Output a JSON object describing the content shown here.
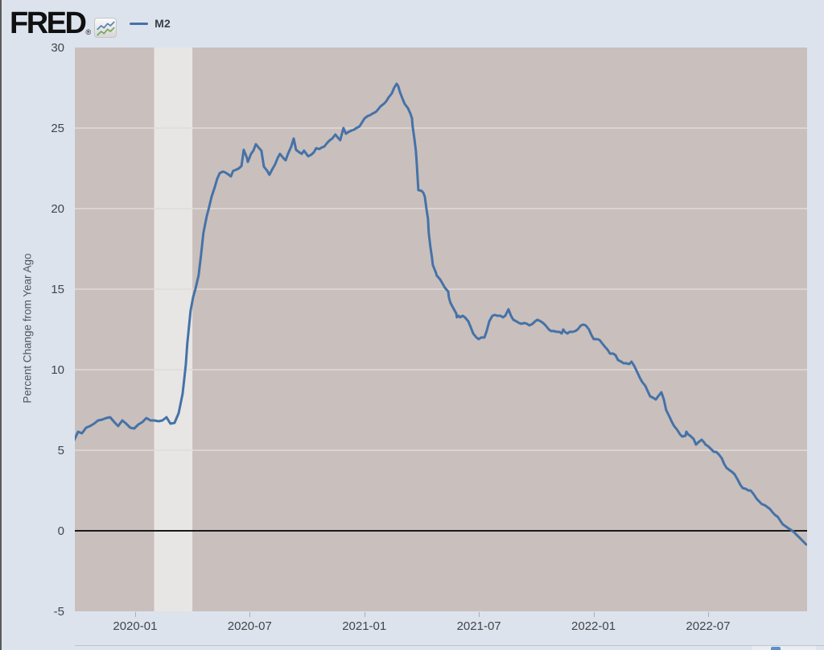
{
  "header": {
    "brand": "FRED",
    "registered": "®",
    "legend": {
      "series_label": "M2"
    }
  },
  "colors": {
    "background": "#dde3ed",
    "plot_bg": "#c9bfbc",
    "recession_band": "#e7e6e4",
    "gridline": "#e1dcd9",
    "series_line": "#4572a7",
    "zero_line": "#1a1a1a",
    "axis_text": "#424549",
    "icon_blue": "#5b84b1",
    "icon_green": "#7aa661"
  },
  "chart_data": {
    "type": "line",
    "title": "",
    "ylabel": "Percent Change from Year Ago",
    "xlabel": "",
    "grid": true,
    "legend_position": "top-left",
    "xlim": [
      2019.737,
      2022.932
    ],
    "ylim": [
      -5,
      30
    ],
    "y_ticks": [
      {
        "v": 30,
        "label": "30",
        "grid": false
      },
      {
        "v": 25,
        "label": "25",
        "grid": true
      },
      {
        "v": 20,
        "label": "20",
        "grid": true
      },
      {
        "v": 15,
        "label": "15",
        "grid": true
      },
      {
        "v": 10,
        "label": "10",
        "grid": true
      },
      {
        "v": 5,
        "label": "5",
        "grid": true
      },
      {
        "v": 0,
        "label": "0",
        "grid": false
      },
      {
        "v": -5,
        "label": "-5",
        "grid": false
      }
    ],
    "x_ticks": [
      {
        "year": 2020.0,
        "label": "2020-01"
      },
      {
        "year": 2020.5,
        "label": "2020-07"
      },
      {
        "year": 2021.0,
        "label": "2021-01"
      },
      {
        "year": 2021.5,
        "label": "2021-07"
      },
      {
        "year": 2022.0,
        "label": "2022-01"
      },
      {
        "year": 2022.5,
        "label": "2022-07"
      }
    ],
    "zero_line": 0,
    "recession_band": {
      "start": 2020.083,
      "end": 2020.25
    },
    "series": [
      {
        "name": "M2",
        "color": "#4572a7",
        "points": [
          [
            2019.733,
            5.6
          ],
          [
            2019.751,
            6.15
          ],
          [
            2019.768,
            6.05
          ],
          [
            2019.786,
            6.4
          ],
          [
            2019.803,
            6.5
          ],
          [
            2019.821,
            6.65
          ],
          [
            2019.838,
            6.85
          ],
          [
            2019.856,
            6.9
          ],
          [
            2019.874,
            7.0
          ],
          [
            2019.891,
            7.05
          ],
          [
            2019.909,
            6.75
          ],
          [
            2019.926,
            6.5
          ],
          [
            2019.944,
            6.85
          ],
          [
            2019.961,
            6.65
          ],
          [
            2019.979,
            6.4
          ],
          [
            2019.996,
            6.35
          ],
          [
            2020.014,
            6.6
          ],
          [
            2020.032,
            6.75
          ],
          [
            2020.049,
            7.0
          ],
          [
            2020.067,
            6.85
          ],
          [
            2020.084,
            6.85
          ],
          [
            2020.102,
            6.8
          ],
          [
            2020.119,
            6.85
          ],
          [
            2020.137,
            7.05
          ],
          [
            2020.154,
            6.65
          ],
          [
            2020.172,
            6.7
          ],
          [
            2020.19,
            7.3
          ],
          [
            2020.207,
            8.5
          ],
          [
            2020.221,
            10.3
          ],
          [
            2020.228,
            11.65
          ],
          [
            2020.235,
            12.65
          ],
          [
            2020.242,
            13.65
          ],
          [
            2020.253,
            14.5
          ],
          [
            2020.263,
            15.0
          ],
          [
            2020.277,
            15.85
          ],
          [
            2020.288,
            17.15
          ],
          [
            2020.298,
            18.5
          ],
          [
            2020.312,
            19.5
          ],
          [
            2020.323,
            20.1
          ],
          [
            2020.334,
            20.75
          ],
          [
            2020.348,
            21.35
          ],
          [
            2020.358,
            21.85
          ],
          [
            2020.369,
            22.2
          ],
          [
            2020.383,
            22.3
          ],
          [
            2020.393,
            22.25
          ],
          [
            2020.404,
            22.15
          ],
          [
            2020.418,
            22.0
          ],
          [
            2020.428,
            22.35
          ],
          [
            2020.439,
            22.4
          ],
          [
            2020.453,
            22.5
          ],
          [
            2020.464,
            22.65
          ],
          [
            2020.474,
            23.65
          ],
          [
            2020.488,
            23.15
          ],
          [
            2020.492,
            22.9
          ],
          [
            2020.506,
            23.4
          ],
          [
            2020.516,
            23.6
          ],
          [
            2020.527,
            24.0
          ],
          [
            2020.541,
            23.75
          ],
          [
            2020.551,
            23.6
          ],
          [
            2020.562,
            22.6
          ],
          [
            2020.576,
            22.35
          ],
          [
            2020.586,
            22.1
          ],
          [
            2020.597,
            22.4
          ],
          [
            2020.611,
            22.75
          ],
          [
            2020.622,
            23.15
          ],
          [
            2020.632,
            23.4
          ],
          [
            2020.646,
            23.15
          ],
          [
            2020.657,
            23.0
          ],
          [
            2020.667,
            23.4
          ],
          [
            2020.681,
            23.85
          ],
          [
            2020.692,
            24.35
          ],
          [
            2020.702,
            23.65
          ],
          [
            2020.716,
            23.5
          ],
          [
            2020.727,
            23.4
          ],
          [
            2020.737,
            23.6
          ],
          [
            2020.755,
            23.25
          ],
          [
            2020.769,
            23.35
          ],
          [
            2020.78,
            23.5
          ],
          [
            2020.79,
            23.75
          ],
          [
            2020.804,
            23.7
          ],
          [
            2020.815,
            23.8
          ],
          [
            2020.825,
            23.85
          ],
          [
            2020.839,
            24.1
          ],
          [
            2020.85,
            24.25
          ],
          [
            2020.86,
            24.35
          ],
          [
            2020.874,
            24.6
          ],
          [
            2020.885,
            24.4
          ],
          [
            2020.895,
            24.25
          ],
          [
            2020.909,
            25.0
          ],
          [
            2020.92,
            24.65
          ],
          [
            2020.93,
            24.75
          ],
          [
            2020.944,
            24.85
          ],
          [
            2020.955,
            24.9
          ],
          [
            2020.965,
            25.0
          ],
          [
            2020.979,
            25.1
          ],
          [
            2020.99,
            25.35
          ],
          [
            2021.001,
            25.6
          ],
          [
            2021.015,
            25.75
          ],
          [
            2021.025,
            25.8
          ],
          [
            2021.036,
            25.9
          ],
          [
            2021.05,
            26.0
          ],
          [
            2021.06,
            26.15
          ],
          [
            2021.071,
            26.35
          ],
          [
            2021.085,
            26.5
          ],
          [
            2021.095,
            26.65
          ],
          [
            2021.106,
            26.9
          ],
          [
            2021.12,
            27.15
          ],
          [
            2021.13,
            27.5
          ],
          [
            2021.141,
            27.75
          ],
          [
            2021.148,
            27.6
          ],
          [
            2021.155,
            27.25
          ],
          [
            2021.166,
            26.85
          ],
          [
            2021.176,
            26.5
          ],
          [
            2021.19,
            26.25
          ],
          [
            2021.201,
            25.9
          ],
          [
            2021.208,
            25.6
          ],
          [
            2021.211,
            25.1
          ],
          [
            2021.218,
            24.4
          ],
          [
            2021.225,
            23.6
          ],
          [
            2021.229,
            22.75
          ],
          [
            2021.236,
            21.15
          ],
          [
            2021.25,
            21.1
          ],
          [
            2021.257,
            21.0
          ],
          [
            2021.264,
            20.75
          ],
          [
            2021.271,
            20.0
          ],
          [
            2021.278,
            19.35
          ],
          [
            2021.281,
            18.5
          ],
          [
            2021.288,
            17.65
          ],
          [
            2021.295,
            17.0
          ],
          [
            2021.299,
            16.5
          ],
          [
            2021.306,
            16.25
          ],
          [
            2021.313,
            16.0
          ],
          [
            2021.316,
            15.85
          ],
          [
            2021.331,
            15.6
          ],
          [
            2021.341,
            15.35
          ],
          [
            2021.351,
            15.1
          ],
          [
            2021.366,
            14.85
          ],
          [
            2021.369,
            14.5
          ],
          [
            2021.376,
            14.15
          ],
          [
            2021.387,
            13.85
          ],
          [
            2021.401,
            13.5
          ],
          [
            2021.404,
            13.25
          ],
          [
            2021.411,
            13.35
          ],
          [
            2021.418,
            13.25
          ],
          [
            2021.429,
            13.35
          ],
          [
            2021.439,
            13.25
          ],
          [
            2021.454,
            13.0
          ],
          [
            2021.464,
            12.65
          ],
          [
            2021.475,
            12.25
          ],
          [
            2021.489,
            12.0
          ],
          [
            2021.499,
            11.9
          ],
          [
            2021.51,
            12.0
          ],
          [
            2021.524,
            12.0
          ],
          [
            2021.534,
            12.4
          ],
          [
            2021.545,
            13.0
          ],
          [
            2021.559,
            13.35
          ],
          [
            2021.57,
            13.4
          ],
          [
            2021.58,
            13.35
          ],
          [
            2021.594,
            13.35
          ],
          [
            2021.605,
            13.25
          ],
          [
            2021.615,
            13.35
          ],
          [
            2021.629,
            13.75
          ],
          [
            2021.64,
            13.35
          ],
          [
            2021.65,
            13.1
          ],
          [
            2021.664,
            13.0
          ],
          [
            2021.675,
            12.9
          ],
          [
            2021.685,
            12.85
          ],
          [
            2021.699,
            12.9
          ],
          [
            2021.71,
            12.85
          ],
          [
            2021.72,
            12.75
          ],
          [
            2021.734,
            12.85
          ],
          [
            2021.745,
            13.0
          ],
          [
            2021.755,
            13.1
          ],
          [
            2021.77,
            13.0
          ],
          [
            2021.78,
            12.9
          ],
          [
            2021.791,
            12.75
          ],
          [
            2021.805,
            12.5
          ],
          [
            2021.815,
            12.4
          ],
          [
            2021.826,
            12.4
          ],
          [
            2021.84,
            12.35
          ],
          [
            2021.851,
            12.35
          ],
          [
            2021.861,
            12.25
          ],
          [
            2021.868,
            12.5
          ],
          [
            2021.875,
            12.35
          ],
          [
            2021.886,
            12.25
          ],
          [
            2021.896,
            12.35
          ],
          [
            2021.91,
            12.35
          ],
          [
            2021.921,
            12.4
          ],
          [
            2021.931,
            12.5
          ],
          [
            2021.945,
            12.75
          ],
          [
            2021.956,
            12.8
          ],
          [
            2021.966,
            12.75
          ],
          [
            2021.98,
            12.5
          ],
          [
            2021.991,
            12.15
          ],
          [
            2022.001,
            11.9
          ],
          [
            2022.015,
            11.9
          ],
          [
            2022.026,
            11.85
          ],
          [
            2022.037,
            11.65
          ],
          [
            2022.051,
            11.4
          ],
          [
            2022.061,
            11.25
          ],
          [
            2022.072,
            11.0
          ],
          [
            2022.086,
            11.0
          ],
          [
            2022.096,
            10.9
          ],
          [
            2022.107,
            10.6
          ],
          [
            2022.121,
            10.5
          ],
          [
            2022.131,
            10.4
          ],
          [
            2022.142,
            10.4
          ],
          [
            2022.156,
            10.35
          ],
          [
            2022.166,
            10.5
          ],
          [
            2022.177,
            10.25
          ],
          [
            2022.191,
            9.85
          ],
          [
            2022.202,
            9.5
          ],
          [
            2022.212,
            9.25
          ],
          [
            2022.226,
            9.0
          ],
          [
            2022.237,
            8.65
          ],
          [
            2022.247,
            8.35
          ],
          [
            2022.261,
            8.25
          ],
          [
            2022.272,
            8.15
          ],
          [
            2022.282,
            8.35
          ],
          [
            2022.296,
            8.6
          ],
          [
            2022.307,
            8.15
          ],
          [
            2022.317,
            7.5
          ],
          [
            2022.331,
            7.1
          ],
          [
            2022.342,
            6.75
          ],
          [
            2022.352,
            6.5
          ],
          [
            2022.366,
            6.25
          ],
          [
            2022.377,
            6.0
          ],
          [
            2022.387,
            5.85
          ],
          [
            2022.401,
            5.9
          ],
          [
            2022.405,
            6.15
          ],
          [
            2022.412,
            6.0
          ],
          [
            2022.422,
            5.9
          ],
          [
            2022.437,
            5.7
          ],
          [
            2022.447,
            5.35
          ],
          [
            2022.458,
            5.5
          ],
          [
            2022.472,
            5.65
          ],
          [
            2022.482,
            5.5
          ],
          [
            2022.489,
            5.35
          ],
          [
            2022.5,
            5.25
          ],
          [
            2022.511,
            5.1
          ],
          [
            2022.525,
            4.9
          ],
          [
            2022.535,
            4.9
          ],
          [
            2022.546,
            4.75
          ],
          [
            2022.56,
            4.5
          ],
          [
            2022.57,
            4.15
          ],
          [
            2022.581,
            3.9
          ],
          [
            2022.595,
            3.75
          ],
          [
            2022.605,
            3.65
          ],
          [
            2022.616,
            3.5
          ],
          [
            2022.63,
            3.15
          ],
          [
            2022.641,
            2.85
          ],
          [
            2022.651,
            2.65
          ],
          [
            2022.665,
            2.6
          ],
          [
            2022.676,
            2.5
          ],
          [
            2022.686,
            2.5
          ],
          [
            2022.7,
            2.25
          ],
          [
            2022.711,
            2.0
          ],
          [
            2022.721,
            1.85
          ],
          [
            2022.735,
            1.65
          ],
          [
            2022.746,
            1.6
          ],
          [
            2022.756,
            1.5
          ],
          [
            2022.77,
            1.35
          ],
          [
            2022.781,
            1.15
          ],
          [
            2022.791,
            1.0
          ],
          [
            2022.805,
            0.85
          ],
          [
            2022.816,
            0.6
          ],
          [
            2022.826,
            0.4
          ],
          [
            2022.841,
            0.25
          ],
          [
            2022.851,
            0.15
          ],
          [
            2022.862,
            0.05
          ],
          [
            2022.876,
            -0.1
          ],
          [
            2022.886,
            -0.25
          ],
          [
            2022.897,
            -0.4
          ],
          [
            2022.911,
            -0.6
          ],
          [
            2022.921,
            -0.75
          ],
          [
            2022.928,
            -0.85
          ]
        ]
      }
    ]
  }
}
